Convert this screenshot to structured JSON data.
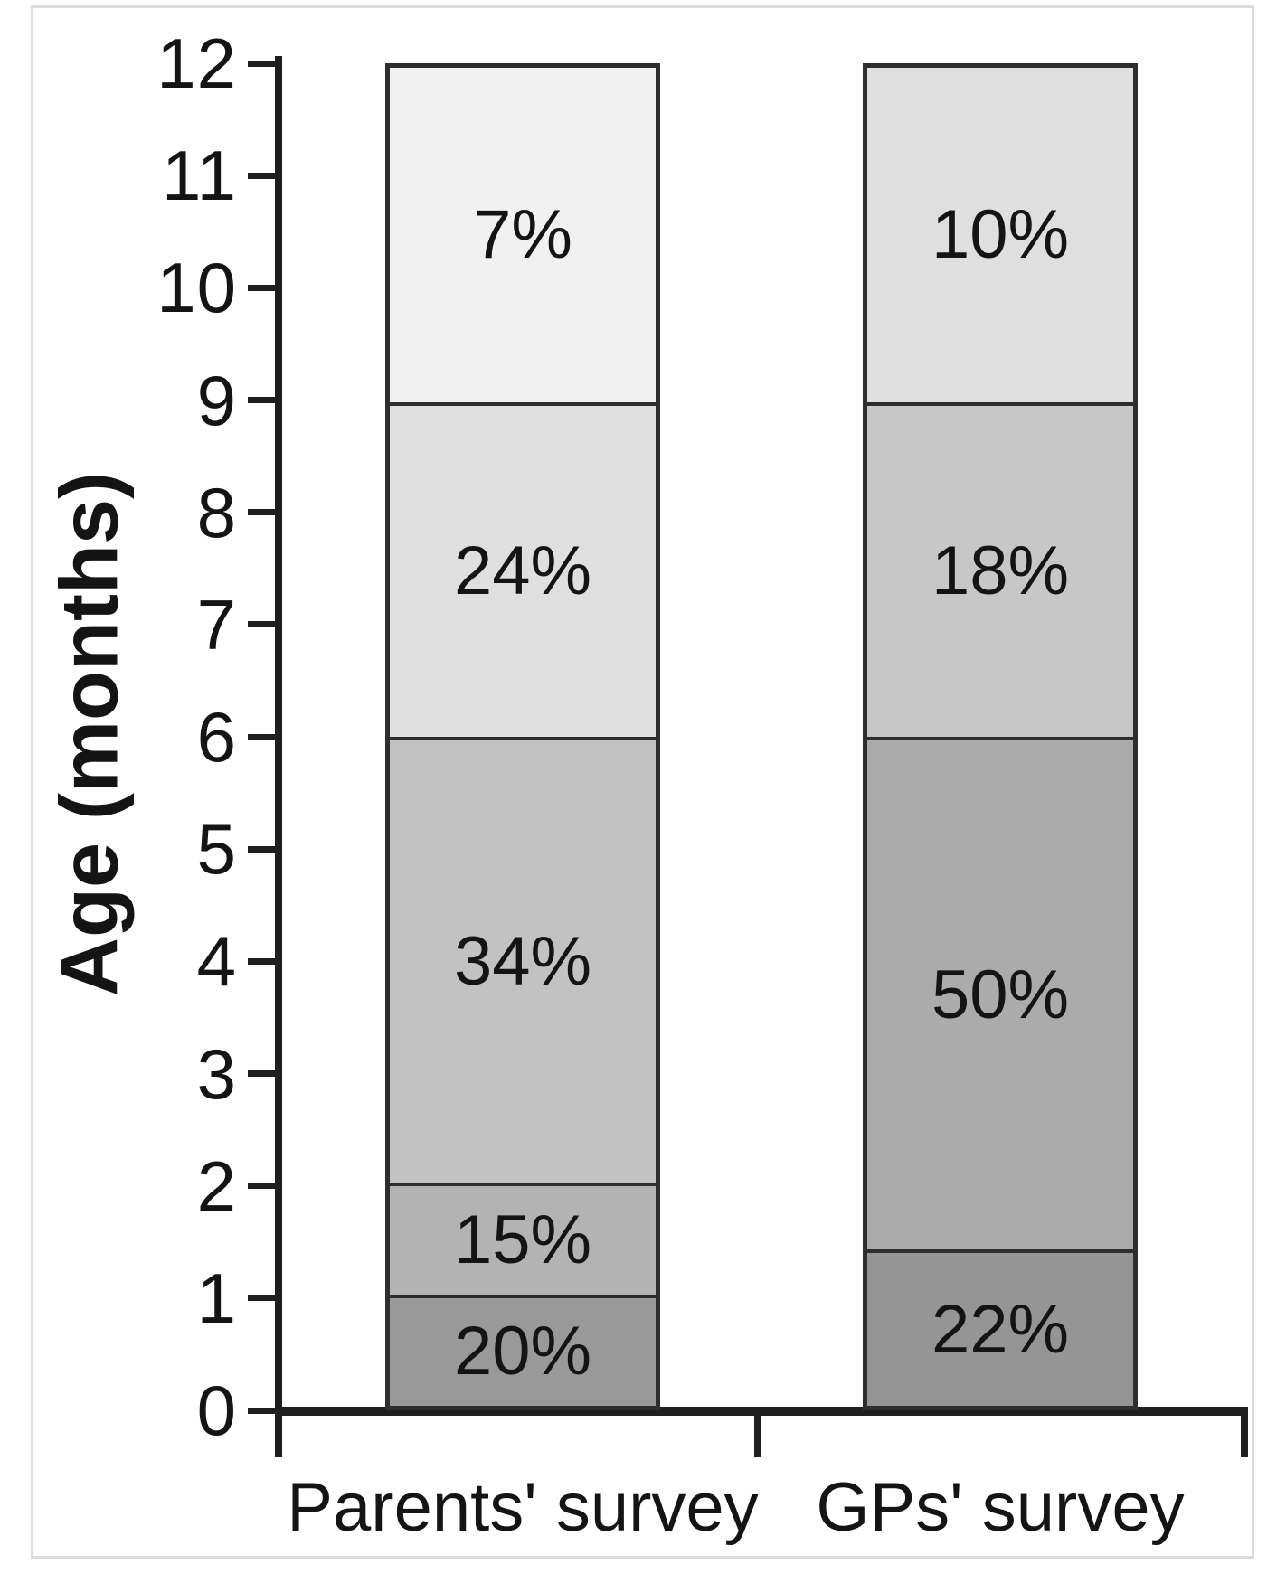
{
  "chart_data": {
    "type": "bar",
    "stacked": true,
    "orientation": "vertical",
    "title": "",
    "xlabel": "",
    "ylabel": "Age (months)",
    "ylim": [
      0,
      12
    ],
    "yticks": [
      0,
      1,
      2,
      3,
      4,
      5,
      6,
      7,
      8,
      9,
      10,
      11,
      12
    ],
    "grid": false,
    "legend": "none",
    "categories": [
      "Parents' survey",
      "GPs' survey"
    ],
    "series": [
      {
        "category": "Parents' survey",
        "segments": [
          {
            "label": "20%",
            "value_percent": 20,
            "from_month": 0,
            "to_month": 1,
            "color": "#999999"
          },
          {
            "label": "15%",
            "value_percent": 15,
            "from_month": 1,
            "to_month": 2,
            "color": "#b3b3b3"
          },
          {
            "label": "34%",
            "value_percent": 34,
            "from_month": 2,
            "to_month": 6,
            "color": "#c2c2c2"
          },
          {
            "label": "24%",
            "value_percent": 24,
            "from_month": 6,
            "to_month": 9,
            "color": "#dfdfdf"
          },
          {
            "label": "7%",
            "value_percent": 7,
            "from_month": 9,
            "to_month": 12,
            "color": "#f1f1f1"
          }
        ]
      },
      {
        "category": "GPs' survey",
        "segments": [
          {
            "label": "22%",
            "value_percent": 22,
            "from_month": 0,
            "to_month": 1.4,
            "color": "#959595"
          },
          {
            "label": "50%",
            "value_percent": 50,
            "from_month": 1.4,
            "to_month": 6,
            "color": "#ababab"
          },
          {
            "label": "18%",
            "value_percent": 18,
            "from_month": 6,
            "to_month": 9,
            "color": "#c7c7c7"
          },
          {
            "label": "10%",
            "value_percent": 10,
            "from_month": 9,
            "to_month": 12,
            "color": "#dfdfdf"
          }
        ]
      }
    ]
  },
  "colors": {
    "axis": "#1f1f1f",
    "bar_border": "#2e2e2e",
    "text": "#141414",
    "frame": "#dcdcdc",
    "background": "#ffffff"
  }
}
